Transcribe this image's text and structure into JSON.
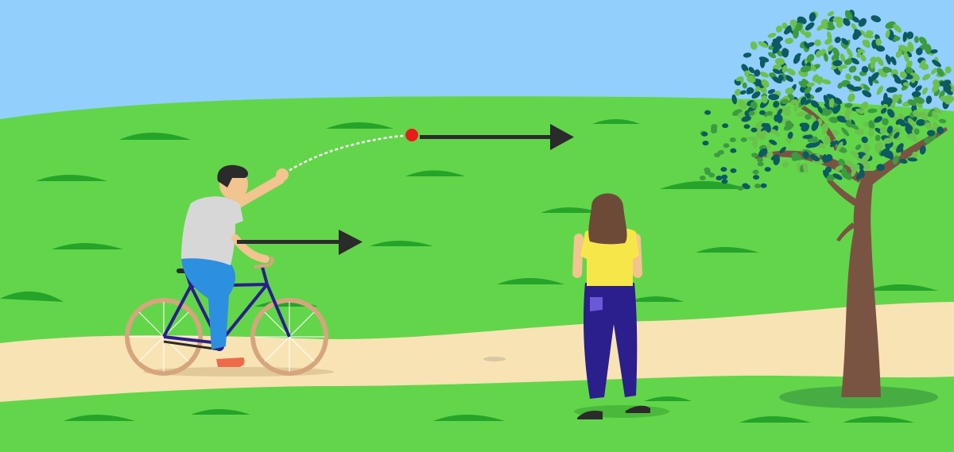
{
  "scene": {
    "colors": {
      "sky": "#93cffd",
      "grass": "#63d54b",
      "grass_tuft": "#25a32a",
      "path": "#f8e3b4",
      "arrow": "#2b2b2b",
      "ball": "#ea1a1a",
      "tree_trunk": "#7a5443",
      "leaf_dark": "#0c5a62",
      "leaf_mid": "#3c9b40",
      "leaf_light": "#6cc04d",
      "bike_frame": "#2a1f8c",
      "bike_wheel": "#d6a57e",
      "cyclist_shirt": "#d7d7d7",
      "cyclist_pants": "#2d8fe0",
      "observer_shirt": "#f6e64a",
      "observer_pants": "#2a1f8c",
      "observer_hair": "#6d4a38",
      "skin": "#f2c48f"
    },
    "icons": {
      "cyclist": "person-on-bicycle",
      "observer": "standing-person-back-view",
      "ball": "ball",
      "tree": "tree",
      "motion_arrow": "right-arrow"
    }
  }
}
